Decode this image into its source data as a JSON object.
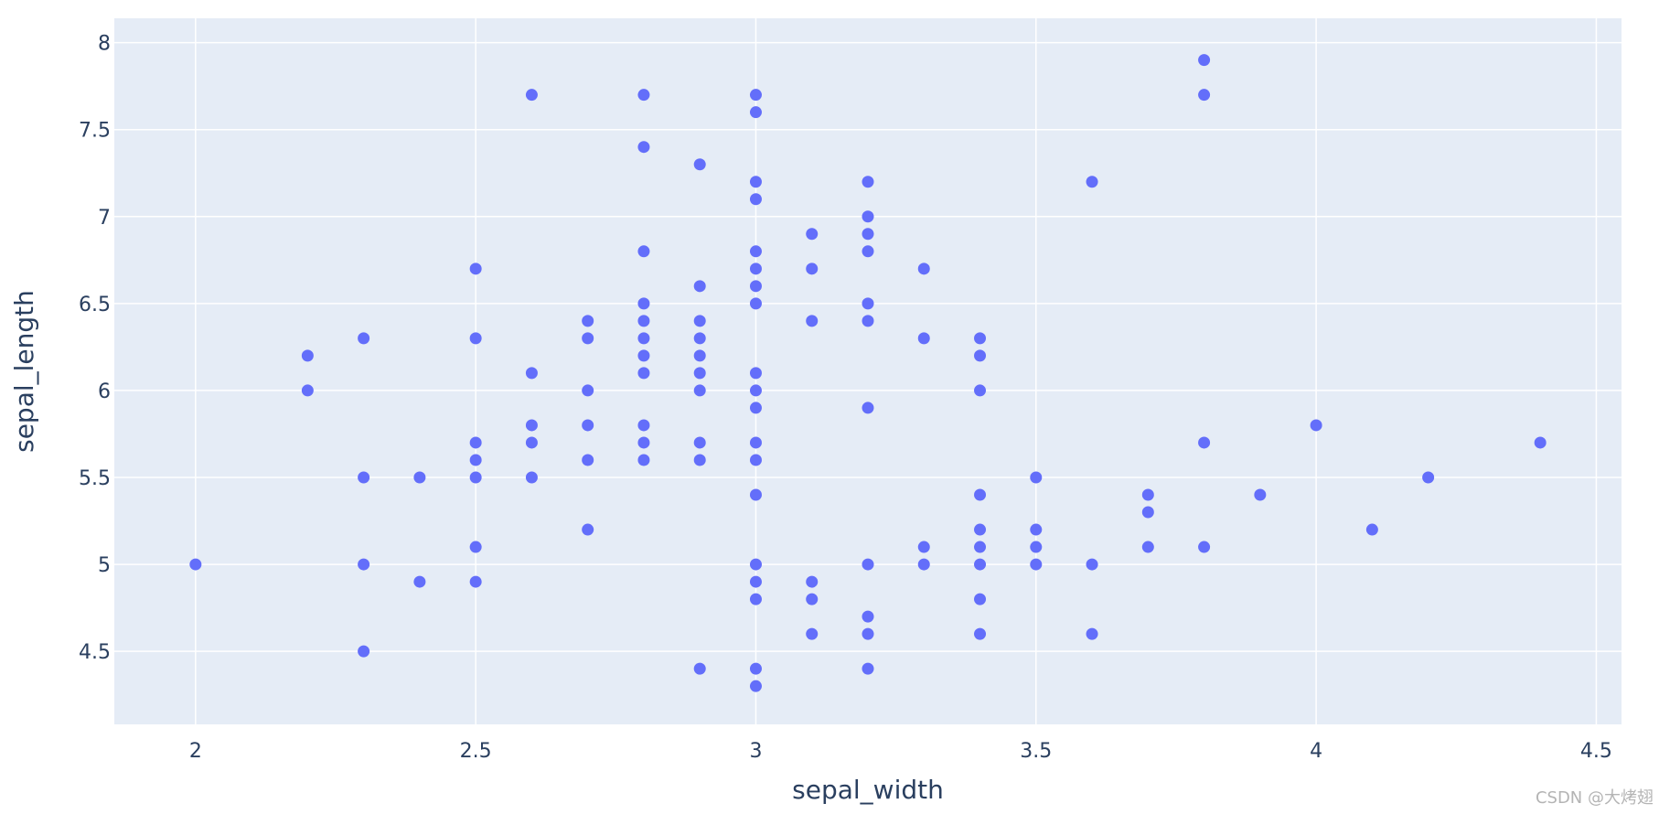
{
  "chart_data": {
    "type": "scatter",
    "title": "",
    "xlabel": "sepal_width",
    "ylabel": "sepal_length",
    "xlim": [
      1.855,
      4.545
    ],
    "ylim": [
      4.08,
      8.14
    ],
    "x_ticks": [
      2,
      2.5,
      3,
      3.5,
      4,
      4.5
    ],
    "x_tick_labels": [
      "2",
      "2.5",
      "3",
      "3.5",
      "4",
      "4.5"
    ],
    "y_ticks": [
      4.5,
      5,
      5.5,
      6,
      6.5,
      7,
      7.5,
      8
    ],
    "y_tick_labels": [
      "4.5",
      "5",
      "5.5",
      "6",
      "6.5",
      "7",
      "7.5",
      "8"
    ],
    "grid": true,
    "legend": "none",
    "colors": {
      "marker": "#636efa",
      "plot_background": "#e5ecf6",
      "grid": "#ffffff",
      "text": "#2a3f5f",
      "watermark": "#b4b4b4"
    },
    "points": [
      {
        "x": 2.0,
        "y": 5.0
      },
      {
        "x": 2.2,
        "y": 6.2
      },
      {
        "x": 2.2,
        "y": 6.0
      },
      {
        "x": 2.3,
        "y": 6.3
      },
      {
        "x": 2.3,
        "y": 5.5
      },
      {
        "x": 2.3,
        "y": 5.0
      },
      {
        "x": 2.3,
        "y": 4.5
      },
      {
        "x": 2.4,
        "y": 5.5
      },
      {
        "x": 2.4,
        "y": 4.9
      },
      {
        "x": 2.5,
        "y": 6.7
      },
      {
        "x": 2.5,
        "y": 6.3
      },
      {
        "x": 2.5,
        "y": 5.7
      },
      {
        "x": 2.5,
        "y": 5.6
      },
      {
        "x": 2.5,
        "y": 5.5
      },
      {
        "x": 2.5,
        "y": 5.1
      },
      {
        "x": 2.5,
        "y": 4.9
      },
      {
        "x": 2.6,
        "y": 7.7
      },
      {
        "x": 2.6,
        "y": 6.1
      },
      {
        "x": 2.6,
        "y": 5.8
      },
      {
        "x": 2.6,
        "y": 5.7
      },
      {
        "x": 2.6,
        "y": 5.5
      },
      {
        "x": 2.7,
        "y": 6.4
      },
      {
        "x": 2.7,
        "y": 6.3
      },
      {
        "x": 2.7,
        "y": 6.0
      },
      {
        "x": 2.7,
        "y": 5.8
      },
      {
        "x": 2.7,
        "y": 5.6
      },
      {
        "x": 2.7,
        "y": 5.2
      },
      {
        "x": 2.8,
        "y": 7.7
      },
      {
        "x": 2.8,
        "y": 7.4
      },
      {
        "x": 2.8,
        "y": 6.8
      },
      {
        "x": 2.8,
        "y": 6.5
      },
      {
        "x": 2.8,
        "y": 6.4
      },
      {
        "x": 2.8,
        "y": 6.3
      },
      {
        "x": 2.8,
        "y": 6.2
      },
      {
        "x": 2.8,
        "y": 6.1
      },
      {
        "x": 2.8,
        "y": 5.8
      },
      {
        "x": 2.8,
        "y": 5.7
      },
      {
        "x": 2.8,
        "y": 5.6
      },
      {
        "x": 2.9,
        "y": 7.3
      },
      {
        "x": 2.9,
        "y": 6.6
      },
      {
        "x": 2.9,
        "y": 6.4
      },
      {
        "x": 2.9,
        "y": 6.3
      },
      {
        "x": 2.9,
        "y": 6.2
      },
      {
        "x": 2.9,
        "y": 6.1
      },
      {
        "x": 2.9,
        "y": 6.0
      },
      {
        "x": 2.9,
        "y": 5.7
      },
      {
        "x": 2.9,
        "y": 5.6
      },
      {
        "x": 2.9,
        "y": 4.4
      },
      {
        "x": 3.0,
        "y": 7.7
      },
      {
        "x": 3.0,
        "y": 7.6
      },
      {
        "x": 3.0,
        "y": 7.2
      },
      {
        "x": 3.0,
        "y": 7.1
      },
      {
        "x": 3.0,
        "y": 6.8
      },
      {
        "x": 3.0,
        "y": 6.7
      },
      {
        "x": 3.0,
        "y": 6.6
      },
      {
        "x": 3.0,
        "y": 6.5
      },
      {
        "x": 3.0,
        "y": 6.1
      },
      {
        "x": 3.0,
        "y": 6.0
      },
      {
        "x": 3.0,
        "y": 5.9
      },
      {
        "x": 3.0,
        "y": 5.7
      },
      {
        "x": 3.0,
        "y": 5.6
      },
      {
        "x": 3.0,
        "y": 5.4
      },
      {
        "x": 3.0,
        "y": 5.0
      },
      {
        "x": 3.0,
        "y": 4.9
      },
      {
        "x": 3.0,
        "y": 4.8
      },
      {
        "x": 3.0,
        "y": 4.4
      },
      {
        "x": 3.0,
        "y": 4.3
      },
      {
        "x": 3.1,
        "y": 6.9
      },
      {
        "x": 3.1,
        "y": 6.7
      },
      {
        "x": 3.1,
        "y": 6.4
      },
      {
        "x": 3.1,
        "y": 4.9
      },
      {
        "x": 3.1,
        "y": 4.8
      },
      {
        "x": 3.1,
        "y": 4.6
      },
      {
        "x": 3.2,
        "y": 7.2
      },
      {
        "x": 3.2,
        "y": 7.0
      },
      {
        "x": 3.2,
        "y": 6.9
      },
      {
        "x": 3.2,
        "y": 6.8
      },
      {
        "x": 3.2,
        "y": 6.5
      },
      {
        "x": 3.2,
        "y": 6.4
      },
      {
        "x": 3.2,
        "y": 5.9
      },
      {
        "x": 3.2,
        "y": 5.0
      },
      {
        "x": 3.2,
        "y": 4.7
      },
      {
        "x": 3.2,
        "y": 4.6
      },
      {
        "x": 3.2,
        "y": 4.4
      },
      {
        "x": 3.3,
        "y": 6.7
      },
      {
        "x": 3.3,
        "y": 6.3
      },
      {
        "x": 3.3,
        "y": 5.1
      },
      {
        "x": 3.3,
        "y": 5.0
      },
      {
        "x": 3.4,
        "y": 6.3
      },
      {
        "x": 3.4,
        "y": 6.2
      },
      {
        "x": 3.4,
        "y": 6.0
      },
      {
        "x": 3.4,
        "y": 5.4
      },
      {
        "x": 3.4,
        "y": 5.2
      },
      {
        "x": 3.4,
        "y": 5.1
      },
      {
        "x": 3.4,
        "y": 5.0
      },
      {
        "x": 3.4,
        "y": 4.8
      },
      {
        "x": 3.4,
        "y": 4.6
      },
      {
        "x": 3.5,
        "y": 5.5
      },
      {
        "x": 3.5,
        "y": 5.2
      },
      {
        "x": 3.5,
        "y": 5.1
      },
      {
        "x": 3.5,
        "y": 5.0
      },
      {
        "x": 3.6,
        "y": 7.2
      },
      {
        "x": 3.6,
        "y": 5.0
      },
      {
        "x": 3.6,
        "y": 4.6
      },
      {
        "x": 3.7,
        "y": 5.4
      },
      {
        "x": 3.7,
        "y": 5.3
      },
      {
        "x": 3.7,
        "y": 5.1
      },
      {
        "x": 3.8,
        "y": 7.9
      },
      {
        "x": 3.8,
        "y": 7.7
      },
      {
        "x": 3.8,
        "y": 5.7
      },
      {
        "x": 3.8,
        "y": 5.1
      },
      {
        "x": 3.9,
        "y": 5.4
      },
      {
        "x": 4.0,
        "y": 5.8
      },
      {
        "x": 4.1,
        "y": 5.2
      },
      {
        "x": 4.2,
        "y": 5.5
      },
      {
        "x": 4.4,
        "y": 5.7
      }
    ]
  },
  "watermark": {
    "text": "CSDN @大烤翅"
  }
}
